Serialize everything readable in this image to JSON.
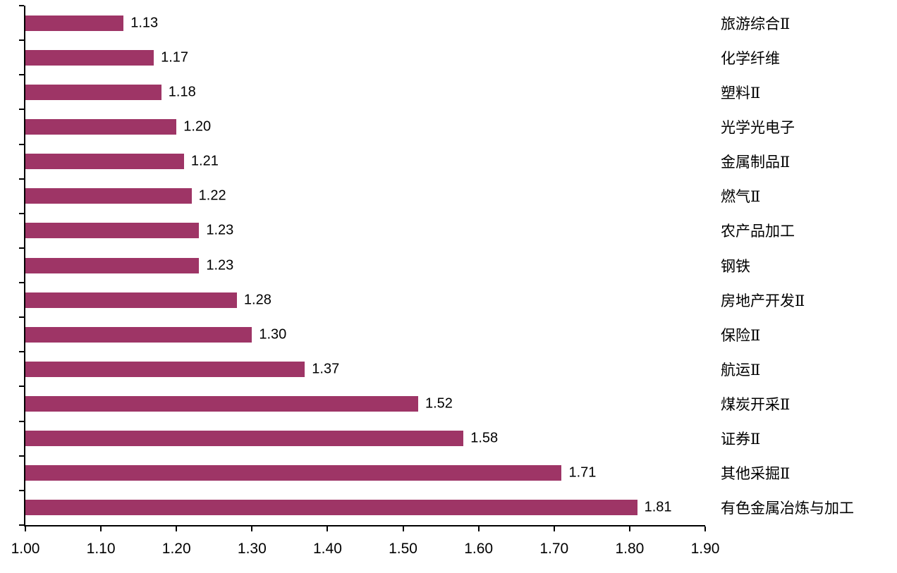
{
  "chart_data": {
    "type": "bar",
    "orientation": "horizontal",
    "title": "",
    "xlabel": "",
    "ylabel": "",
    "grid": false,
    "legend_position": "none",
    "xlim": [
      1.0,
      1.9
    ],
    "x_ticks": [
      "1.00",
      "1.10",
      "1.20",
      "1.30",
      "1.40",
      "1.50",
      "1.60",
      "1.70",
      "1.80",
      "1.90"
    ],
    "categories_top_to_bottom": [
      "旅游综合Ⅱ",
      "化学纤维",
      "塑料Ⅱ",
      "光学光电子",
      "金属制品Ⅱ",
      "燃气Ⅱ",
      "农产品加工",
      "钢铁",
      "房地产开发Ⅱ",
      "保险Ⅱ",
      "航运Ⅱ",
      "煤炭开采Ⅱ",
      "证券Ⅱ",
      "其他采掘Ⅱ",
      "有色金属冶炼与加工"
    ],
    "values": [
      1.13,
      1.17,
      1.18,
      1.2,
      1.21,
      1.22,
      1.23,
      1.23,
      1.28,
      1.3,
      1.37,
      1.52,
      1.58,
      1.71,
      1.81
    ],
    "value_labels": [
      "1.13",
      "1.17",
      "1.18",
      "1.20",
      "1.21",
      "1.22",
      "1.23",
      "1.23",
      "1.28",
      "1.30",
      "1.37",
      "1.52",
      "1.58",
      "1.71",
      "1.81"
    ],
    "bar_color": "#9E3566",
    "axis_color": "#000000",
    "text_color": "#000000",
    "background_color": "#FFFFFF"
  }
}
